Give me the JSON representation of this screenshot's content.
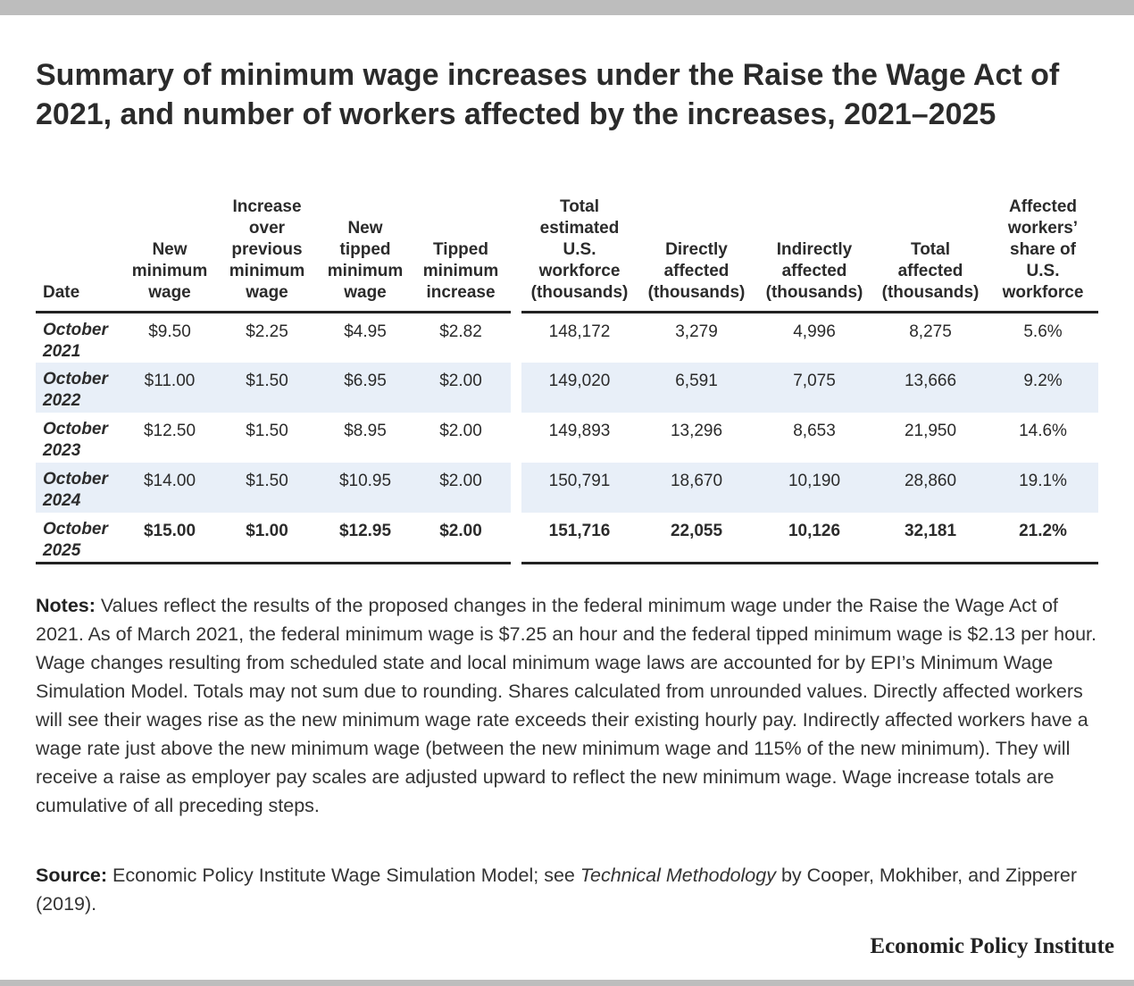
{
  "title": "Summary of minimum wage increases under the Raise the Wage Act of 2021, and number of workers affected by the increases, 2021–2025",
  "table": {
    "headers": [
      [
        "Date"
      ],
      [
        "New",
        "minimum",
        "wage"
      ],
      [
        "Increase",
        "over",
        "previous",
        "minimum",
        "wage"
      ],
      [
        "New",
        "tipped",
        "minimum",
        "wage"
      ],
      [
        "Tipped",
        "minimum",
        "increase"
      ],
      [
        "Total",
        "estimated",
        "U.S.",
        "workforce",
        "(thousands)"
      ],
      [
        "Directly",
        "affected",
        "(thousands)"
      ],
      [
        "Indirectly",
        "affected",
        "(thousands)"
      ],
      [
        "Total",
        "affected",
        "(thousands)"
      ],
      [
        "Affected",
        "workers’",
        "share of",
        "U.S.",
        "workforce"
      ]
    ],
    "rows": [
      {
        "month": "October",
        "year": "2021",
        "cells": [
          "$9.50",
          "$2.25",
          "$4.95",
          "$2.82",
          "148,172",
          "3,279",
          "4,996",
          "8,275",
          "5.6%"
        ]
      },
      {
        "month": "October",
        "year": "2022",
        "cells": [
          "$11.00",
          "$1.50",
          "$6.95",
          "$2.00",
          "149,020",
          "6,591",
          "7,075",
          "13,666",
          "9.2%"
        ]
      },
      {
        "month": "October",
        "year": "2023",
        "cells": [
          "$12.50",
          "$1.50",
          "$8.95",
          "$2.00",
          "149,893",
          "13,296",
          "8,653",
          "21,950",
          "14.6%"
        ]
      },
      {
        "month": "October",
        "year": "2024",
        "cells": [
          "$14.00",
          "$1.50",
          "$10.95",
          "$2.00",
          "150,791",
          "18,670",
          "10,190",
          "28,860",
          "19.1%"
        ]
      },
      {
        "month": "October",
        "year": "2025",
        "cells": [
          "$15.00",
          "$1.00",
          "$12.95",
          "$2.00",
          "151,716",
          "22,055",
          "10,126",
          "32,181",
          "21.2%"
        ]
      }
    ]
  },
  "notes": {
    "label": "Notes:",
    "text": " Values reflect the results of the proposed changes in the federal minimum wage under the Raise the Wage Act of 2021. As of March 2021, the federal minimum wage is $7.25 an hour and the federal tipped minimum wage is $2.13 per hour. Wage changes resulting from scheduled state and local minimum wage laws are accounted for by EPI’s Minimum Wage Simulation Model. Totals may not sum due to rounding. Shares calculated from unrounded values. Directly affected workers will see their wages rise as the new minimum wage rate exceeds their existing hourly pay. Indirectly affected workers have a wage rate just above the new minimum wage (between the new minimum wage and 115% of the new minimum). They will receive a raise as employer pay scales are adjusted upward to reflect the new minimum wage. Wage increase totals are cumulative of all preceding steps."
  },
  "source": {
    "label": "Source:",
    "text_before": " Economic Policy Institute Wage Simulation Model; see ",
    "italic": "Technical Methodology",
    "text_after": " by Cooper, Mokhiber, and Zipperer (2019)."
  },
  "logo": "Economic Policy Institute"
}
